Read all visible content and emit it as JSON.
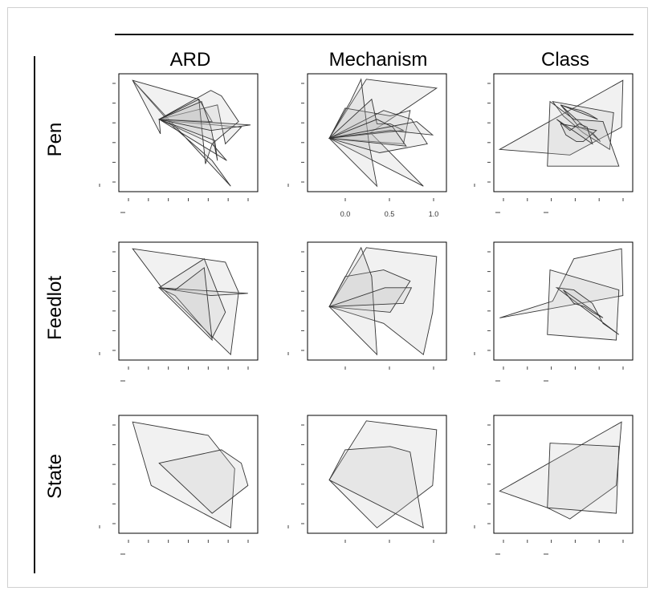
{
  "chart_data": {
    "type": "area",
    "col_titles": [
      "ARD",
      "Mechanism",
      "Class"
    ],
    "row_titles": [
      "Pen",
      "Feedlot",
      "State"
    ],
    "mechanism_x_tick_labels": [
      "0.0",
      "0.5",
      "1.0"
    ],
    "colors": {
      "polygon_fill": "#bdbdbd",
      "polygon_stroke": "#333333",
      "axis": "#444444",
      "frame": "#000000"
    },
    "panels": [
      {
        "row": "Pen",
        "col": "ARD",
        "xlim": [
          0,
          100
        ],
        "ylim": [
          0,
          100
        ],
        "polygons": [
          [
            [
              8,
              97
            ],
            [
              39,
              55
            ],
            [
              68,
              25
            ],
            [
              82,
              2
            ]
          ],
          [
            [
              8,
              97
            ],
            [
              58,
              80
            ],
            [
              68,
              60
            ],
            [
              28,
              62
            ],
            [
              29,
              49
            ]
          ],
          [
            [
              28,
              62
            ],
            [
              72,
              75
            ],
            [
              78,
              40
            ],
            [
              90,
              55
            ],
            [
              40,
              60
            ]
          ],
          [
            [
              28,
              62
            ],
            [
              67,
              88
            ],
            [
              75,
              83
            ],
            [
              88,
              60
            ],
            [
              68,
              40
            ]
          ],
          [
            [
              28,
              62
            ],
            [
              58,
              80
            ],
            [
              63,
              22
            ],
            [
              68,
              40
            ],
            [
              79,
              25
            ]
          ],
          [
            [
              28,
              62
            ],
            [
              60,
              78
            ],
            [
              67,
              55
            ],
            [
              72,
              25
            ],
            [
              70,
              43
            ]
          ],
          [
            [
              28,
              62
            ],
            [
              97,
              57
            ],
            [
              67,
              52
            ]
          ]
        ]
      },
      {
        "row": "Pen",
        "col": "Mechanism",
        "xlim": [
          0,
          100
        ],
        "ylim": [
          0,
          100
        ],
        "polygons": [
          [
            [
              14,
              45
            ],
            [
              42,
              98
            ],
            [
              95,
              90
            ],
            [
              45,
              50
            ],
            [
              85,
              2
            ]
          ],
          [
            [
              14,
              45
            ],
            [
              26,
              72
            ],
            [
              60,
              65
            ],
            [
              75,
              70
            ],
            [
              70,
              40
            ]
          ],
          [
            [
              14,
              45
            ],
            [
              30,
              78
            ],
            [
              38,
              98
            ],
            [
              44,
              40
            ],
            [
              50,
              2
            ]
          ],
          [
            [
              14,
              45
            ],
            [
              55,
              70
            ],
            [
              76,
              62
            ],
            [
              88,
              40
            ],
            [
              52,
              32
            ]
          ],
          [
            [
              14,
              45
            ],
            [
              46,
              80
            ],
            [
              50,
              58
            ],
            [
              60,
              58
            ],
            [
              70,
              52
            ]
          ],
          [
            [
              14,
              45
            ],
            [
              50,
              62
            ],
            [
              62,
              55
            ],
            [
              72,
              38
            ]
          ],
          [
            [
              14,
              45
            ],
            [
              60,
              52
            ],
            [
              92,
              48
            ],
            [
              80,
              60
            ]
          ]
        ]
      },
      {
        "row": "Pen",
        "col": "Class",
        "xlim": [
          0,
          100
        ],
        "ylim": [
          0,
          100
        ],
        "polygons": [
          [
            [
              2,
              35
            ],
            [
              95,
              97
            ],
            [
              94,
              55
            ],
            [
              55,
              30
            ]
          ],
          [
            [
              42,
              78
            ],
            [
              50,
              65
            ],
            [
              65,
              50
            ],
            [
              85,
              35
            ],
            [
              88,
              68
            ]
          ],
          [
            [
              48,
              75
            ],
            [
              55,
              65
            ],
            [
              62,
              55
            ],
            [
              72,
              50
            ],
            [
              78,
              42
            ]
          ],
          [
            [
              38,
              20
            ],
            [
              40,
              78
            ],
            [
              58,
              62
            ],
            [
              80,
              60
            ],
            [
              92,
              20
            ]
          ],
          [
            [
              48,
              58
            ],
            [
              52,
              48
            ],
            [
              60,
              42
            ],
            [
              65,
              42
            ],
            [
              75,
              52
            ]
          ],
          [
            [
              45,
              62
            ],
            [
              55,
              52
            ],
            [
              62,
              58
            ],
            [
              68,
              55
            ],
            [
              72,
              40
            ]
          ],
          [
            [
              48,
              75
            ],
            [
              56,
              72
            ],
            [
              63,
              70
            ],
            [
              69,
              67
            ],
            [
              76,
              62
            ]
          ]
        ]
      },
      {
        "row": "Feedlot",
        "col": "ARD",
        "xlim": [
          0,
          100
        ],
        "ylim": [
          0,
          100
        ],
        "polygons": [
          [
            [
              8,
              97
            ],
            [
              78,
              85
            ],
            [
              88,
              58
            ],
            [
              82,
              2
            ],
            [
              30,
              62
            ]
          ],
          [
            [
              28,
              62
            ],
            [
              62,
              88
            ],
            [
              78,
              40
            ],
            [
              68,
              17
            ],
            [
              40,
              55
            ]
          ],
          [
            [
              28,
              62
            ],
            [
              95,
              57
            ],
            [
              67,
              55
            ]
          ],
          [
            [
              28,
              62
            ],
            [
              68,
              15
            ],
            [
              62,
              80
            ],
            [
              40,
              60
            ]
          ]
        ]
      },
      {
        "row": "Feedlot",
        "col": "Mechanism",
        "xlim": [
          0,
          100
        ],
        "ylim": [
          0,
          100
        ],
        "polygons": [
          [
            [
              14,
              45
            ],
            [
              42,
              98
            ],
            [
              95,
              90
            ],
            [
              92,
              40
            ],
            [
              85,
              2
            ],
            [
              55,
              30
            ]
          ],
          [
            [
              14,
              45
            ],
            [
              26,
              72
            ],
            [
              55,
              78
            ],
            [
              75,
              68
            ],
            [
              60,
              40
            ]
          ],
          [
            [
              14,
              45
            ],
            [
              38,
              98
            ],
            [
              46,
              72
            ],
            [
              50,
              2
            ]
          ],
          [
            [
              14,
              45
            ],
            [
              56,
              62
            ],
            [
              76,
              62
            ],
            [
              70,
              48
            ]
          ]
        ]
      },
      {
        "row": "Feedlot",
        "col": "Class",
        "xlim": [
          0,
          100
        ],
        "ylim": [
          0,
          100
        ],
        "polygons": [
          [
            [
              2,
              35
            ],
            [
              95,
              55
            ],
            [
              94,
              97
            ],
            [
              58,
              88
            ],
            [
              42,
              50
            ]
          ],
          [
            [
              38,
              20
            ],
            [
              40,
              78
            ],
            [
              92,
              60
            ],
            [
              90,
              15
            ]
          ],
          [
            [
              45,
              62
            ],
            [
              58,
              60
            ],
            [
              72,
              48
            ],
            [
              80,
              30
            ],
            [
              92,
              20
            ]
          ],
          [
            [
              50,
              60
            ],
            [
              58,
              48
            ],
            [
              66,
              45
            ],
            [
              72,
              40
            ],
            [
              80,
              35
            ]
          ]
        ]
      },
      {
        "row": "State",
        "col": "ARD",
        "xlim": [
          0,
          100
        ],
        "ylim": [
          0,
          100
        ],
        "polygons": [
          [
            [
              8,
              97
            ],
            [
              65,
              85
            ],
            [
              85,
              55
            ],
            [
              82,
              2
            ],
            [
              22,
              40
            ]
          ],
          [
            [
              28,
              60
            ],
            [
              75,
              72
            ],
            [
              90,
              60
            ],
            [
              95,
              40
            ],
            [
              68,
              15
            ]
          ]
        ]
      },
      {
        "row": "State",
        "col": "Mechanism",
        "xlim": [
          0,
          100
        ],
        "ylim": [
          0,
          100
        ],
        "polygons": [
          [
            [
              14,
              45
            ],
            [
              42,
              98
            ],
            [
              95,
              90
            ],
            [
              92,
              40
            ],
            [
              50,
              2
            ]
          ],
          [
            [
              14,
              45
            ],
            [
              26,
              72
            ],
            [
              60,
              75
            ],
            [
              75,
              70
            ],
            [
              85,
              2
            ]
          ]
        ]
      },
      {
        "row": "State",
        "col": "Class",
        "xlim": [
          0,
          100
        ],
        "ylim": [
          0,
          100
        ],
        "polygons": [
          [
            [
              2,
              35
            ],
            [
              94,
              97
            ],
            [
              90,
              40
            ],
            [
              55,
              10
            ],
            [
              38,
              20
            ]
          ],
          [
            [
              38,
              20
            ],
            [
              40,
              78
            ],
            [
              92,
              75
            ],
            [
              90,
              15
            ]
          ]
        ]
      }
    ]
  }
}
